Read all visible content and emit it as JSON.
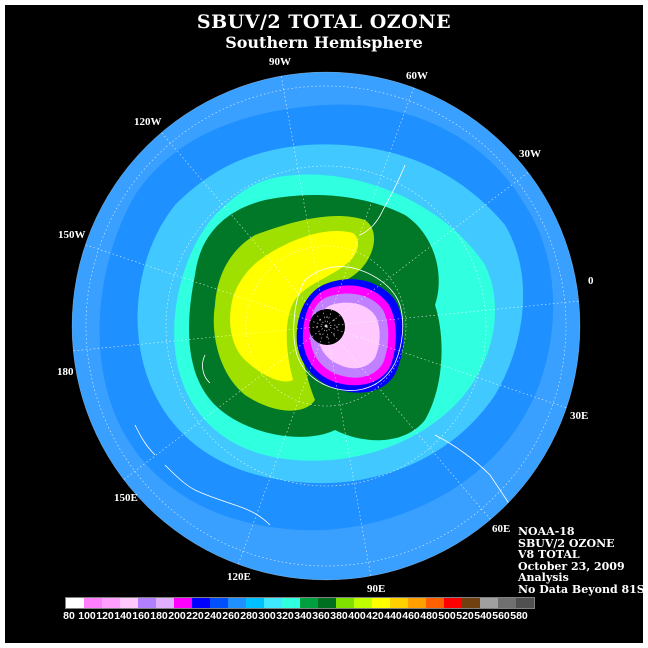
{
  "title": "SBUV/2 TOTAL OZONE",
  "subtitle": "Southern Hemisphere",
  "longitude_labels": [
    "0",
    "30E",
    "60E",
    "90E",
    "120E",
    "150E",
    "180",
    "150W",
    "120W",
    "90W",
    "60W",
    "30W"
  ],
  "info": {
    "satellite": "NOAA-18",
    "instrument": "SBUV/2 OZONE",
    "version": "V8 TOTAL",
    "date": "October 23, 2009",
    "type": "Analysis",
    "note": "No Data Beyond 81S"
  },
  "colorbar": {
    "labels": [
      "80",
      "100",
      "120",
      "140",
      "160",
      "180",
      "200",
      "220",
      "240",
      "260",
      "280",
      "300",
      "320",
      "340",
      "360",
      "380",
      "400",
      "420",
      "440",
      "460",
      "480",
      "500",
      "520",
      "540",
      "560",
      "580"
    ],
    "colors": [
      "#ffffff",
      "#ff80ff",
      "#ffa0ff",
      "#ffc8ff",
      "#b080ff",
      "#e0b0ff",
      "#ff00ff",
      "#0000ff",
      "#0050ff",
      "#2090ff",
      "#00c0ff",
      "#40e8ff",
      "#30ffe0",
      "#00a040",
      "#007020",
      "#80e000",
      "#c0ff00",
      "#ffff00",
      "#ffd000",
      "#ffa000",
      "#ff6000",
      "#ff0000",
      "#704010",
      "#a0a0a0",
      "#707070",
      "#505050"
    ]
  },
  "map_colors": {
    "background": "#000000",
    "outer_ocean": "#3aa0ff",
    "band_blue": "#1e90ff",
    "band_light_blue": "#40c8ff",
    "band_cyan": "#30ffe0",
    "band_green": "#007828",
    "band_lime": "#a0e000",
    "band_yellow": "#ffff00",
    "hole_blue": "#0000ff",
    "hole_magenta": "#ff00ff",
    "hole_purple": "#c080ff",
    "hole_pink": "#ffc8ff",
    "pole_nodata": "#000000"
  }
}
